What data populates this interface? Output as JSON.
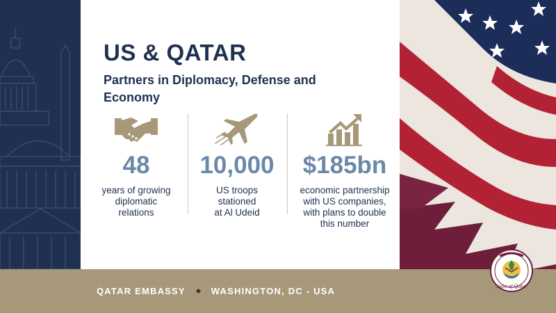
{
  "title": "US & QATAR",
  "subtitle": "Partners in Diplomacy, Defense and Economy",
  "stats": [
    {
      "icon": "handshake-icon",
      "value": "48",
      "desc_lines": [
        "years of growing",
        "diplomatic",
        "relations"
      ]
    },
    {
      "icon": "airplane-icon",
      "value": "10,000",
      "desc_lines": [
        "US troops",
        "stationed",
        "at Al Udeid"
      ]
    },
    {
      "icon": "growth-chart-icon",
      "value": "$185bn",
      "desc_lines": [
        "economic partnership",
        "with US companies,",
        "with plans to double",
        "this number"
      ]
    }
  ],
  "footer": {
    "left": "QATAR EMBASSY",
    "right": "WASHINGTON, DC - USA"
  },
  "seal": {
    "icon": "state-of-qatar-seal-icon",
    "text": "State of Qatar"
  },
  "colors": {
    "navy": "#1f3050",
    "accent_blue": "#6a88a8",
    "gold": "#a8987a",
    "icon_gold": "#a8987a",
    "maroon": "#6e1e3a",
    "us_red": "#b22234"
  }
}
